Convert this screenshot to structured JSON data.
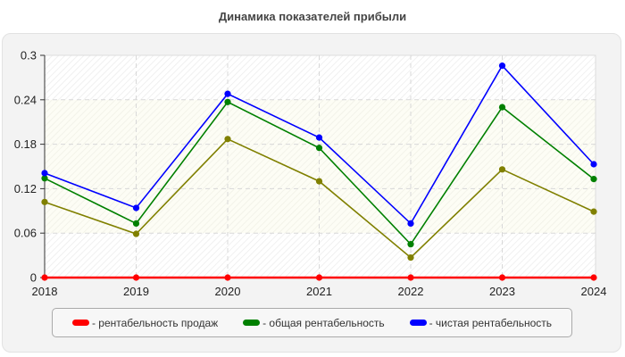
{
  "chart_data": {
    "type": "line",
    "title": "Динамика показателей прибыли",
    "xlabel": "",
    "ylabel": "",
    "categories": [
      "2018",
      "2019",
      "2020",
      "2021",
      "2022",
      "2023",
      "2024"
    ],
    "ylim": [
      0,
      0.3
    ],
    "yticks": [
      "0",
      "0.06",
      "0.12",
      "0.18",
      "0.24",
      "0.3"
    ],
    "grid": true,
    "legend_position": "bottom",
    "series": [
      {
        "name": "рентабельность продаж",
        "color": "#ff0000",
        "values": [
          0,
          0,
          0,
          0,
          0,
          0,
          0
        ],
        "in_legend": true
      },
      {
        "name": "",
        "color": "#808000",
        "values": [
          0.102,
          0.059,
          0.187,
          0.13,
          0.027,
          0.146,
          0.089
        ],
        "in_legend": false
      },
      {
        "name": "общая рентабельность",
        "color": "#008000",
        "values": [
          0.134,
          0.073,
          0.237,
          0.175,
          0.045,
          0.23,
          0.133
        ],
        "in_legend": true
      },
      {
        "name": "чистая рентабельность",
        "color": "#0000ff",
        "values": [
          0.141,
          0.094,
          0.248,
          0.189,
          0.073,
          0.286,
          0.153
        ],
        "in_legend": true
      }
    ]
  },
  "legend": {
    "items": [
      {
        "label": "- рентабельность продаж",
        "color": "#ff0000"
      },
      {
        "label": "- общая рентабельность",
        "color": "#008000"
      },
      {
        "label": "- чистая рентабельность",
        "color": "#0000ff"
      }
    ]
  }
}
